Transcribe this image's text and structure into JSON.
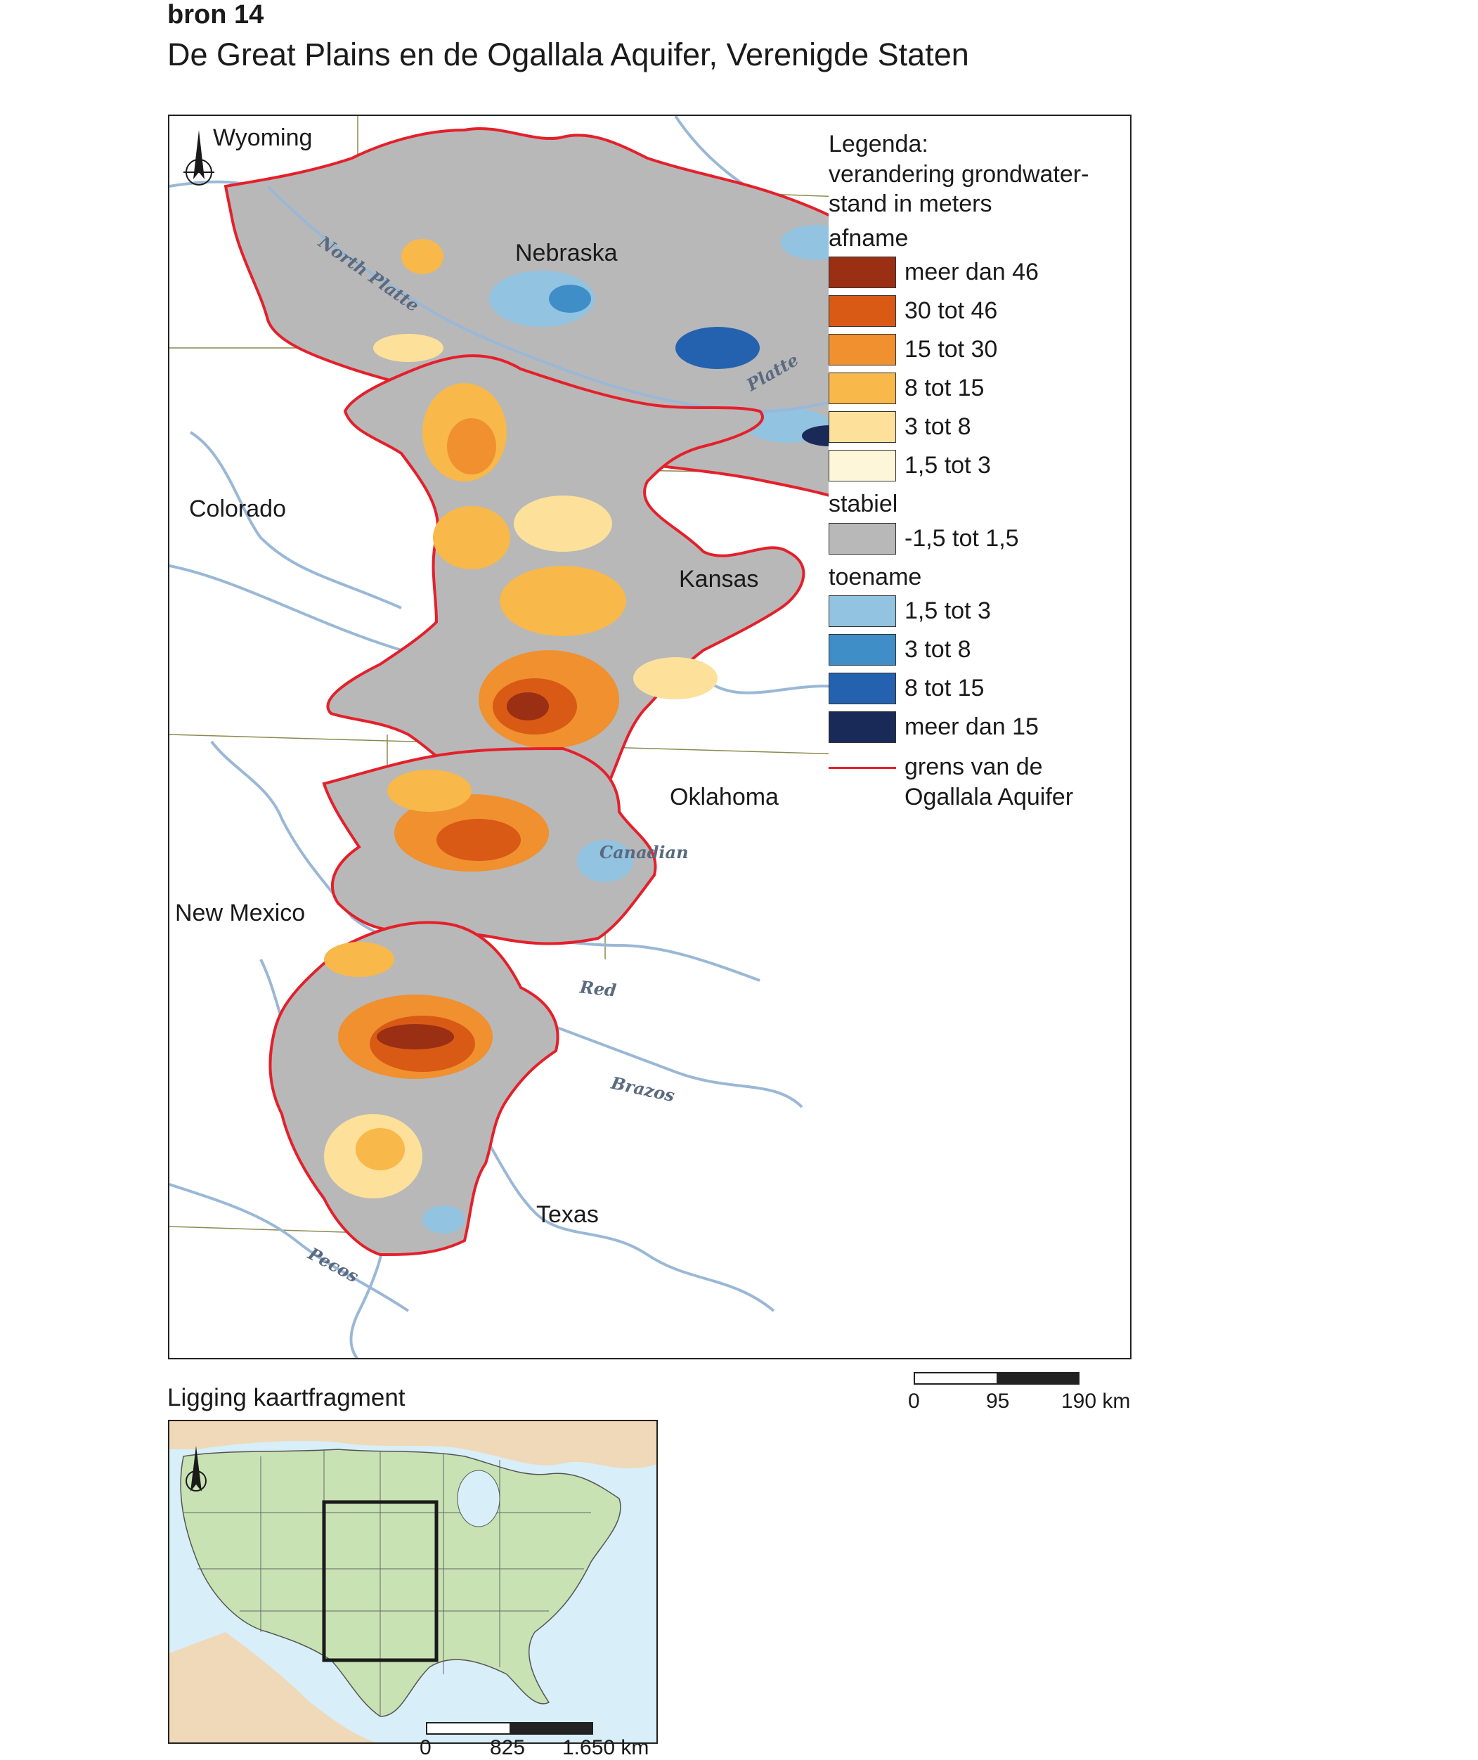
{
  "header": {
    "source_label": "bron 14",
    "title": "De Great Plains en de Ogallala Aquifer, Verenigde Staten"
  },
  "map": {
    "states": {
      "wyoming": "Wyoming",
      "nebraska": "Nebraska",
      "colorado": "Colorado",
      "kansas": "Kansas",
      "oklahoma": "Oklahoma",
      "new_mexico": "New Mexico",
      "texas": "Texas"
    },
    "rivers": {
      "north_platte": "North Platte",
      "platte": "Platte",
      "canadian": "Canadian",
      "red": "Red",
      "brazos": "Brazos",
      "pecos": "Pecos"
    },
    "colors": {
      "stable": "#b8b8b8",
      "river": "#9ab8d6",
      "boundary": "#e4202b",
      "state_line": "#8a8a50"
    }
  },
  "legend": {
    "title_line1": "Legenda:",
    "title_line2": "verandering grondwater-",
    "title_line3": "stand in meters",
    "decrease": {
      "label": "afname",
      "items": [
        {
          "label": "meer dan 46",
          "color": "#9a2f14"
        },
        {
          "label": "30 tot 46",
          "color": "#d85a15"
        },
        {
          "label": "15 tot 30",
          "color": "#f0902e"
        },
        {
          "label": "8 tot 15",
          "color": "#f8b84a"
        },
        {
          "label": "3 tot 8",
          "color": "#fde09a"
        },
        {
          "label": "1,5 tot 3",
          "color": "#fef6d8"
        }
      ]
    },
    "stable": {
      "label": "stabiel",
      "items": [
        {
          "label": "-1,5 tot 1,5",
          "color": "#b8b8b8"
        }
      ]
    },
    "increase": {
      "label": "toename",
      "items": [
        {
          "label": "1,5 tot 3",
          "color": "#92c3e0"
        },
        {
          "label": "3 tot 8",
          "color": "#3f8ec8"
        },
        {
          "label": "8 tot 15",
          "color": "#2462b0"
        },
        {
          "label": "meer dan 15",
          "color": "#1a2a58"
        }
      ]
    },
    "boundary_line1": "grens van de",
    "boundary_line2": "Ogallala Aquifer"
  },
  "scalebar_main": {
    "labels": [
      "0",
      "95",
      "190 km"
    ]
  },
  "inset": {
    "caption": "Ligging kaartfragment",
    "colors": {
      "usa": "#c8e2b4",
      "other_land": "#efd9b9",
      "water": "#d8eef8"
    },
    "scalebar_labels": [
      "0",
      "825",
      "1.650 km"
    ]
  }
}
